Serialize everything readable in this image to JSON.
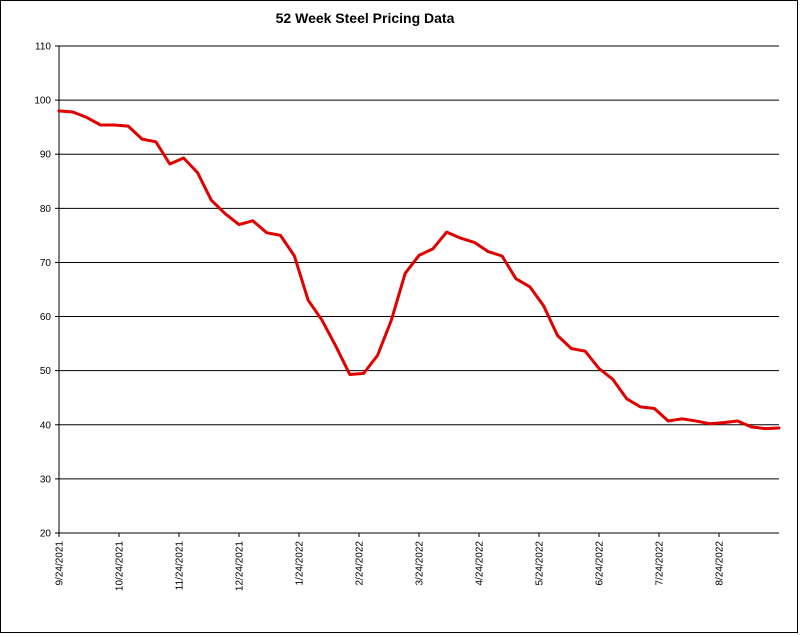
{
  "chart_data": {
    "type": "line",
    "title": "52 Week Steel Pricing Data",
    "xlabel": "",
    "ylabel": "",
    "ylim": [
      20,
      110
    ],
    "yticks": [
      20,
      30,
      40,
      50,
      60,
      70,
      80,
      90,
      100,
      110
    ],
    "xtick_labels": [
      "9/24/2021",
      "10/24/2021",
      "11/24/2021",
      "12/24/2021",
      "1/24/2022",
      "2/24/2022",
      "3/24/2022",
      "4/24/2022",
      "5/24/2022",
      "6/24/2022",
      "7/24/2022",
      "8/24/2022"
    ],
    "grid": "horizontal",
    "legend": "none",
    "line_color": "#e00000",
    "series": [
      {
        "values": [
          98.0,
          97.8,
          96.8,
          95.4,
          95.4,
          95.2,
          92.8,
          92.3,
          88.2,
          89.3,
          86.6,
          81.5,
          79.0,
          77.0,
          77.7,
          75.5,
          75.0,
          71.2,
          63.0,
          59.3,
          54.5,
          49.3,
          49.5,
          52.8,
          59.3,
          68.0,
          71.3,
          72.5,
          75.6,
          74.5,
          73.7,
          72.0,
          71.2,
          67.0,
          65.5,
          62.0,
          56.5,
          54.1,
          53.6,
          50.4,
          48.4,
          44.8,
          43.3,
          43.0,
          40.7,
          41.1,
          40.7,
          40.2,
          40.4,
          40.7,
          39.6,
          39.3,
          39.4
        ]
      }
    ]
  }
}
